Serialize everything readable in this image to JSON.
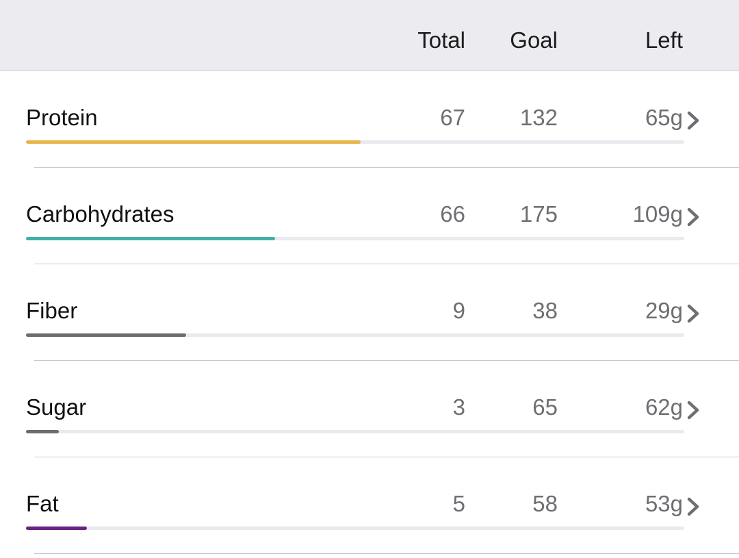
{
  "header": {
    "total_label": "Total",
    "goal_label": "Goal",
    "left_label": "Left"
  },
  "nutrients": [
    {
      "name": "Protein",
      "total": "67",
      "goal": "132",
      "left": "65g",
      "progress": 0.508,
      "color": "#e8b54a"
    },
    {
      "name": "Carbohydrates",
      "total": "66",
      "goal": "175",
      "left": "109g",
      "progress": 0.378,
      "color": "#3fb2a5"
    },
    {
      "name": "Fiber",
      "total": "9",
      "goal": "38",
      "left": "29g",
      "progress": 0.243,
      "color": "#6d6d70"
    },
    {
      "name": "Sugar",
      "total": "3",
      "goal": "65",
      "left": "62g",
      "progress": 0.05,
      "color": "#6d6d70"
    },
    {
      "name": "Fat",
      "total": "5",
      "goal": "58",
      "left": "53g",
      "progress": 0.092,
      "color": "#6b2383"
    }
  ],
  "icons": {
    "row_chevron": "chevron-right-icon"
  }
}
